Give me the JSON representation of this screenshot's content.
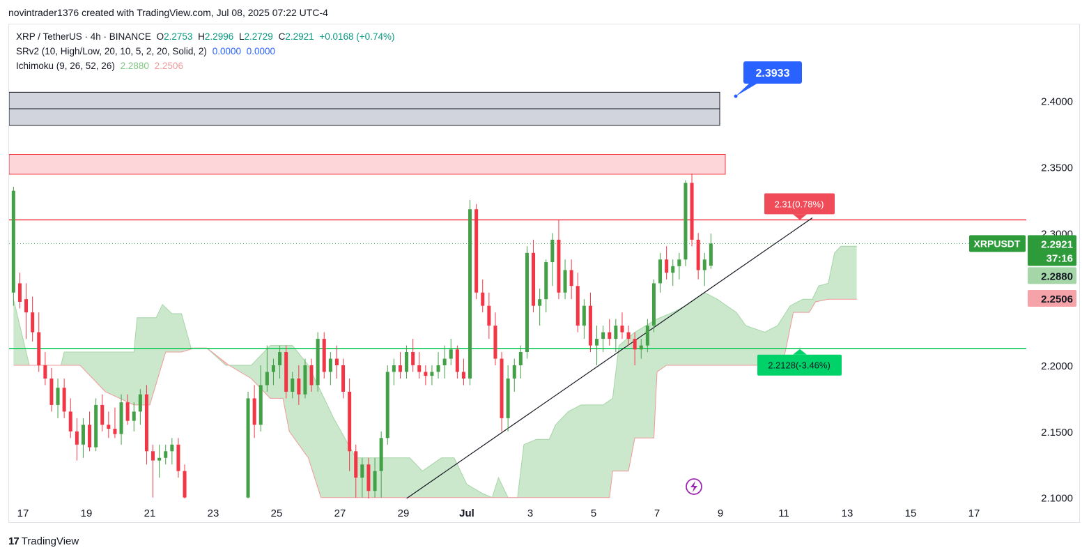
{
  "header": {
    "credit": "novintrader1376 created with TradingView.com, Jul 08, 2025 07:22 UTC-4"
  },
  "legend": {
    "symbol": "XRP / TetherUS · 4h · BINANCE",
    "o_label": "O",
    "o": "2.2753",
    "h_label": "H",
    "h": "2.2996",
    "l_label": "L",
    "l": "2.2729",
    "c_label": "C",
    "c": "2.2921",
    "change": "+0.0168 (+0.74%)",
    "srv2": "SRv2 (10, High/Low, 20, 10, 5, 2, 20, Solid, 2)",
    "srv2_v1": "0.0000",
    "srv2_v2": "0.0000",
    "ichimoku": "Ichimoku (9, 26, 52, 26)",
    "ichi_v1": "2.2880",
    "ichi_v2": "2.2506"
  },
  "footer": {
    "brand": "TradingView",
    "logo": "17"
  },
  "colors": {
    "up": "#43a047",
    "down": "#f23645",
    "cloud_green": "#c8e6c9",
    "cloud_red": "#f8bbbb",
    "accent": "#2962ff"
  },
  "chart_data": {
    "type": "candlestick",
    "y_range": [
      2.0993,
      2.4225
    ],
    "y_ticks": [
      2.4,
      2.35,
      2.3,
      2.25,
      2.2,
      2.15,
      2.1
    ],
    "y_tick_labels": [
      "2.4000",
      "2.3500",
      "2.3000",
      "2.2500",
      "2.2000",
      "2.1500",
      "2.1000"
    ],
    "x_ticks": [
      {
        "day": -14,
        "label": "17"
      },
      {
        "day": -12,
        "label": "19"
      },
      {
        "day": -10,
        "label": "21"
      },
      {
        "day": -8,
        "label": "23"
      },
      {
        "day": -6,
        "label": "25"
      },
      {
        "day": -4,
        "label": "27"
      },
      {
        "day": -2,
        "label": "29"
      },
      {
        "day": 0,
        "label": "Jul"
      },
      {
        "day": 2,
        "label": "3"
      },
      {
        "day": 4,
        "label": "5"
      },
      {
        "day": 6,
        "label": "7"
      },
      {
        "day": 8,
        "label": "9"
      },
      {
        "day": 10,
        "label": "11"
      },
      {
        "day": 12,
        "label": "13"
      },
      {
        "day": 14,
        "label": "15"
      },
      {
        "day": 16,
        "label": "17"
      }
    ],
    "zones": [
      {
        "kind": "supply-gray",
        "from": 2.3815,
        "to": 2.4065,
        "mid": 2.394
      },
      {
        "kind": "supply-red",
        "from": 2.3445,
        "to": 2.3595
      }
    ],
    "levels": [
      {
        "name": "resistance",
        "price": 2.31,
        "color": "#f23645",
        "label": "2.31(0.78%)"
      },
      {
        "name": "support",
        "price": 2.2128,
        "color": "#00c853",
        "label": "2.2128(-3.46%)"
      }
    ],
    "trendline": {
      "from": [
        -1.9,
        2.0993
      ],
      "to": [
        10.9,
        2.3115
      ]
    },
    "callout": {
      "label": "2.3933",
      "price": 2.3933
    },
    "last_price": {
      "symbol": "XRPUSDT",
      "price": "2.2921",
      "countdown": "37:16",
      "value": 2.2921
    },
    "ichimoku_labels": [
      {
        "label": "2.2880",
        "value": 2.288
      },
      {
        "label": "2.2506",
        "value": 2.2506
      }
    ],
    "cloud_a": [
      [
        -14.3,
        2.25
      ],
      [
        -13.8,
        2.2
      ],
      [
        -12.8,
        2.2
      ],
      [
        -12.7,
        2.21
      ],
      [
        -11.8,
        2.21
      ],
      [
        -11.0,
        2.21
      ],
      [
        -10.5,
        2.21
      ],
      [
        -10.4,
        2.236
      ],
      [
        -9.8,
        2.236
      ],
      [
        -9.6,
        2.246
      ],
      [
        -9.3,
        2.239
      ],
      [
        -9.0,
        2.239
      ],
      [
        -8.7,
        2.213
      ],
      [
        -8.2,
        2.213
      ],
      [
        -7.6,
        2.2
      ],
      [
        -6.8,
        2.2
      ],
      [
        -6.2,
        2.215
      ],
      [
        -5.5,
        2.215
      ],
      [
        -5.0,
        2.2
      ],
      [
        -4.2,
        2.16
      ],
      [
        -3.5,
        2.13
      ],
      [
        -1.8,
        2.13
      ],
      [
        -1.4,
        2.12
      ],
      [
        -0.8,
        2.13
      ],
      [
        -0.4,
        2.13
      ],
      [
        0.0,
        2.11
      ],
      [
        0.5,
        2.103
      ],
      [
        0.8,
        2.1
      ],
      [
        1.0,
        2.115
      ],
      [
        1.3,
        2.1
      ],
      [
        1.6,
        2.1
      ],
      [
        1.8,
        2.14
      ],
      [
        2.2,
        2.144
      ],
      [
        2.6,
        2.144
      ],
      [
        2.8,
        2.155
      ],
      [
        3.2,
        2.165
      ],
      [
        3.6,
        2.17
      ],
      [
        4.3,
        2.17
      ],
      [
        4.6,
        2.175
      ],
      [
        4.8,
        2.215
      ],
      [
        5.3,
        2.225
      ],
      [
        6.0,
        2.235
      ],
      [
        6.5,
        2.24
      ],
      [
        6.9,
        2.245
      ],
      [
        7.5,
        2.255
      ],
      [
        7.9,
        2.25
      ],
      [
        8.2,
        2.245
      ],
      [
        8.5,
        2.24
      ],
      [
        8.8,
        2.23
      ],
      [
        9.4,
        2.225
      ],
      [
        9.8,
        2.23
      ],
      [
        10.2,
        2.245
      ],
      [
        10.6,
        2.25
      ],
      [
        10.9,
        2.25
      ],
      [
        11.1,
        2.26
      ],
      [
        11.4,
        2.262
      ],
      [
        11.6,
        2.285
      ],
      [
        11.8,
        2.29
      ],
      [
        12.3,
        2.29
      ]
    ],
    "cloud_b": [
      [
        -14.3,
        2.2
      ],
      [
        -13.8,
        2.2
      ],
      [
        -12.8,
        2.2
      ],
      [
        -12.2,
        2.2
      ],
      [
        -11.8,
        2.19
      ],
      [
        -11.4,
        2.18
      ],
      [
        -10.5,
        2.17
      ],
      [
        -10.0,
        2.17
      ],
      [
        -9.5,
        2.21
      ],
      [
        -9.0,
        2.21
      ],
      [
        -8.6,
        2.213
      ],
      [
        -8.2,
        2.213
      ],
      [
        -7.5,
        2.2
      ],
      [
        -6.8,
        2.19
      ],
      [
        -6.2,
        2.175
      ],
      [
        -5.8,
        2.175
      ],
      [
        -5.6,
        2.15
      ],
      [
        -5.0,
        2.13
      ],
      [
        -4.6,
        2.1
      ],
      [
        -2.0,
        2.1
      ],
      [
        -1.8,
        2.1
      ],
      [
        -1.5,
        2.1
      ],
      [
        -1.0,
        2.1
      ],
      [
        -0.5,
        2.1
      ],
      [
        0.0,
        2.1
      ],
      [
        2.0,
        2.1
      ],
      [
        4.0,
        2.1
      ],
      [
        4.5,
        2.1
      ],
      [
        4.6,
        2.12
      ],
      [
        5.1,
        2.12
      ],
      [
        5.3,
        2.145
      ],
      [
        5.9,
        2.145
      ],
      [
        6.0,
        2.195
      ],
      [
        6.3,
        2.2
      ],
      [
        7.0,
        2.2
      ],
      [
        8.0,
        2.2
      ],
      [
        9.0,
        2.2
      ],
      [
        9.5,
        2.2
      ],
      [
        10.0,
        2.205
      ],
      [
        10.3,
        2.24
      ],
      [
        10.8,
        2.24
      ],
      [
        11.0,
        2.248
      ],
      [
        11.4,
        2.25
      ],
      [
        12.3,
        2.25
      ]
    ],
    "candles": [
      [
        -14.3,
        2.255,
        2.335,
        2.245,
        2.332
      ],
      [
        -14.1,
        2.262,
        2.27,
        2.243,
        2.248
      ],
      [
        -13.9,
        2.25,
        2.262,
        2.22,
        2.24
      ],
      [
        -13.7,
        2.24,
        2.252,
        2.218,
        2.225
      ],
      [
        -13.5,
        2.225,
        2.24,
        2.195,
        2.2
      ],
      [
        -13.3,
        2.2,
        2.21,
        2.185,
        2.19
      ],
      [
        -13.1,
        2.19,
        2.198,
        2.165,
        2.17
      ],
      [
        -12.9,
        2.17,
        2.19,
        2.16,
        2.183
      ],
      [
        -12.7,
        2.183,
        2.19,
        2.16,
        2.165
      ],
      [
        -12.5,
        2.165,
        2.175,
        2.145,
        2.15
      ],
      [
        -12.3,
        2.15,
        2.16,
        2.128,
        2.14
      ],
      [
        -12.1,
        2.14,
        2.16,
        2.13,
        2.155
      ],
      [
        -11.9,
        2.155,
        2.165,
        2.135,
        2.138
      ],
      [
        -11.7,
        2.138,
        2.175,
        2.135,
        2.17
      ],
      [
        -11.5,
        2.17,
        2.178,
        2.15,
        2.155
      ],
      [
        -11.3,
        2.155,
        2.165,
        2.145,
        2.152
      ],
      [
        -11.1,
        2.152,
        2.168,
        2.145,
        2.148
      ],
      [
        -10.9,
        2.148,
        2.178,
        2.14,
        2.172
      ],
      [
        -10.7,
        2.172,
        2.178,
        2.155,
        2.158
      ],
      [
        -10.5,
        2.158,
        2.172,
        2.15,
        2.165
      ],
      [
        -10.3,
        2.165,
        2.182,
        2.155,
        2.178
      ],
      [
        -10.1,
        2.178,
        2.185,
        2.125,
        2.135
      ],
      [
        -9.9,
        2.135,
        2.14,
        2.1,
        2.128
      ],
      [
        -9.7,
        2.128,
        2.14,
        2.115,
        2.13
      ],
      [
        -9.5,
        2.13,
        2.14,
        2.125,
        2.135
      ],
      [
        -9.3,
        2.135,
        2.145,
        2.125,
        2.14
      ],
      [
        -9.1,
        2.14,
        2.145,
        2.115,
        2.12
      ],
      [
        -8.9,
        2.12,
        2.125,
        2.08,
        2.1
      ],
      [
        -6.9,
        2.1,
        2.18,
        2.095,
        2.175
      ],
      [
        -6.7,
        2.175,
        2.185,
        2.145,
        2.155
      ],
      [
        -6.5,
        2.155,
        2.2,
        2.15,
        2.185
      ],
      [
        -6.3,
        2.185,
        2.215,
        2.18,
        2.195
      ],
      [
        -6.1,
        2.195,
        2.205,
        2.185,
        2.2
      ],
      [
        -5.9,
        2.2,
        2.215,
        2.19,
        2.21
      ],
      [
        -5.7,
        2.21,
        2.215,
        2.175,
        2.18
      ],
      [
        -5.5,
        2.18,
        2.195,
        2.175,
        2.19
      ],
      [
        -5.3,
        2.19,
        2.2,
        2.17,
        2.178
      ],
      [
        -5.1,
        2.178,
        2.205,
        2.175,
        2.2
      ],
      [
        -4.9,
        2.2,
        2.205,
        2.18,
        2.185
      ],
      [
        -4.7,
        2.185,
        2.225,
        2.18,
        2.22
      ],
      [
        -4.5,
        2.22,
        2.225,
        2.19,
        2.195
      ],
      [
        -4.3,
        2.195,
        2.21,
        2.185,
        2.205
      ],
      [
        -4.1,
        2.205,
        2.215,
        2.19,
        2.2
      ],
      [
        -3.9,
        2.2,
        2.205,
        2.175,
        2.18
      ],
      [
        -3.7,
        2.18,
        2.19,
        2.12,
        2.135
      ],
      [
        -3.5,
        2.135,
        2.14,
        2.1,
        2.115
      ],
      [
        -3.3,
        2.115,
        2.13,
        2.1,
        2.125
      ],
      [
        -3.1,
        2.125,
        2.13,
        2.095,
        2.105
      ],
      [
        -2.9,
        2.105,
        2.13,
        2.1,
        2.12
      ],
      [
        -2.7,
        2.12,
        2.15,
        2.1,
        2.145
      ],
      [
        -2.5,
        2.145,
        2.2,
        2.14,
        2.195
      ],
      [
        -2.3,
        2.195,
        2.205,
        2.185,
        2.2
      ],
      [
        -2.1,
        2.2,
        2.21,
        2.19,
        2.195
      ],
      [
        -1.9,
        2.195,
        2.215,
        2.19,
        2.21
      ],
      [
        -1.7,
        2.21,
        2.22,
        2.195,
        2.2
      ],
      [
        -1.5,
        2.2,
        2.21,
        2.19,
        2.195
      ],
      [
        -1.3,
        2.195,
        2.2,
        2.185,
        2.192
      ],
      [
        -1.1,
        2.192,
        2.2,
        2.185,
        2.195
      ],
      [
        -0.9,
        2.195,
        2.21,
        2.19,
        2.2
      ],
      [
        -0.7,
        2.2,
        2.215,
        2.19,
        2.205
      ],
      [
        -0.5,
        2.205,
        2.22,
        2.2,
        2.212
      ],
      [
        -0.3,
        2.212,
        2.215,
        2.19,
        2.195
      ],
      [
        -0.1,
        2.195,
        2.205,
        2.185,
        2.19
      ],
      [
        0.1,
        2.19,
        2.325,
        2.185,
        2.318
      ],
      [
        0.3,
        2.318,
        2.322,
        2.25,
        2.255
      ],
      [
        0.5,
        2.255,
        2.265,
        2.24,
        2.245
      ],
      [
        0.7,
        2.245,
        2.255,
        2.22,
        2.23
      ],
      [
        0.9,
        2.23,
        2.24,
        2.2,
        2.205
      ],
      [
        1.1,
        2.205,
        2.21,
        2.15,
        2.16
      ],
      [
        1.3,
        2.16,
        2.2,
        2.15,
        2.19
      ],
      [
        1.5,
        2.19,
        2.205,
        2.18,
        2.2
      ],
      [
        1.7,
        2.2,
        2.215,
        2.19,
        2.21
      ],
      [
        1.9,
        2.21,
        2.29,
        2.205,
        2.285
      ],
      [
        2.1,
        2.285,
        2.295,
        2.24,
        2.245
      ],
      [
        2.3,
        2.245,
        2.258,
        2.23,
        2.25
      ],
      [
        2.5,
        2.25,
        2.28,
        2.24,
        2.278
      ],
      [
        2.7,
        2.278,
        2.3,
        2.26,
        2.295
      ],
      [
        2.9,
        2.295,
        2.31,
        2.25,
        2.255
      ],
      [
        3.1,
        2.255,
        2.28,
        2.25,
        2.272
      ],
      [
        3.3,
        2.272,
        2.28,
        2.25,
        2.26
      ],
      [
        3.5,
        2.26,
        2.27,
        2.225,
        2.23
      ],
      [
        3.7,
        2.23,
        2.25,
        2.22,
        2.245
      ],
      [
        3.9,
        2.245,
        2.255,
        2.21,
        2.215
      ],
      [
        4.1,
        2.215,
        2.23,
        2.2,
        2.22
      ],
      [
        4.3,
        2.22,
        2.23,
        2.21,
        2.225
      ],
      [
        4.5,
        2.225,
        2.235,
        2.215,
        2.22
      ],
      [
        4.7,
        2.22,
        2.235,
        2.21,
        2.23
      ],
      [
        4.9,
        2.23,
        2.24,
        2.22,
        2.225
      ],
      [
        5.1,
        2.225,
        2.23,
        2.215,
        2.22
      ],
      [
        5.3,
        2.22,
        2.225,
        2.2,
        2.212
      ],
      [
        5.5,
        2.212,
        2.22,
        2.205,
        2.215
      ],
      [
        5.7,
        2.215,
        2.235,
        2.21,
        2.23
      ],
      [
        5.9,
        2.23,
        2.265,
        2.225,
        2.262
      ],
      [
        6.1,
        2.262,
        2.285,
        2.255,
        2.28
      ],
      [
        6.3,
        2.28,
        2.29,
        2.265,
        2.27
      ],
      [
        6.5,
        2.27,
        2.28,
        2.26,
        2.275
      ],
      [
        6.7,
        2.275,
        2.285,
        2.265,
        2.28
      ],
      [
        6.9,
        2.28,
        2.34,
        2.275,
        2.338
      ],
      [
        7.1,
        2.338,
        2.345,
        2.29,
        2.295
      ],
      [
        7.3,
        2.295,
        2.3,
        2.265,
        2.272
      ],
      [
        7.5,
        2.272,
        2.285,
        2.26,
        2.28
      ],
      [
        7.7,
        2.2753,
        2.2996,
        2.2729,
        2.2921
      ]
    ]
  }
}
